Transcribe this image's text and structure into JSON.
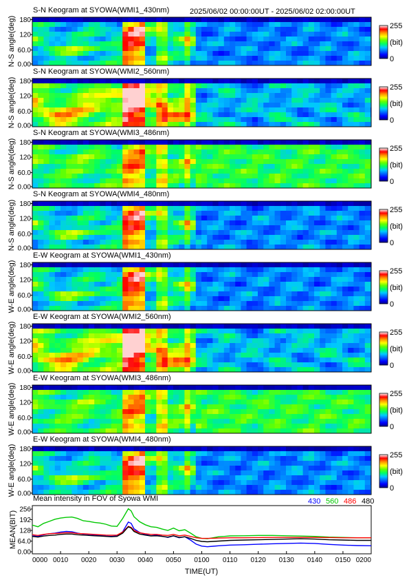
{
  "header": {
    "period": "2025/06/02 00:00:00UT - 2025/06/02 02:00:00UT"
  },
  "colorbar": {
    "max_label": "255",
    "unit_label": "(bit)",
    "min_label": "0",
    "colors": [
      "#00008c",
      "#0000ff",
      "#0064ff",
      "#00c8ff",
      "#00ff64",
      "#64ff00",
      "#ffff00",
      "#ff9600",
      "#ff0000",
      "#ffffff"
    ]
  },
  "keograms": [
    {
      "title": "S-N Keogram at SYOWA(WMI1_430nm)",
      "ylabel": "N-S angle(deg)",
      "yticks": [
        "180",
        "120",
        "60.0",
        "0.00"
      ],
      "level": "low"
    },
    {
      "title": "S-N Keogram at SYOWA(WMI2_560nm)",
      "ylabel": "N-S angle(deg)",
      "yticks": [
        "180",
        "120",
        "60.0",
        "0.00"
      ],
      "level": "high"
    },
    {
      "title": "S-N Keogram at SYOWA(WMI3_486nm)",
      "ylabel": "N-S angle(deg)",
      "yticks": [
        "180",
        "120",
        "60.0",
        "0.00"
      ],
      "level": "mid"
    },
    {
      "title": "S-N Keogram at SYOWA(WMI4_480nm)",
      "ylabel": "N-S angle(deg)",
      "yticks": [
        "180",
        "120",
        "60.0",
        "0.00"
      ],
      "level": "low"
    },
    {
      "title": "E-W Keogram at SYOWA(WMI1_430nm)",
      "ylabel": "W-E angle(deg)",
      "yticks": [
        "180",
        "120",
        "60.0",
        "0.00"
      ],
      "level": "low"
    },
    {
      "title": "E-W Keogram at SYOWA(WMI2_560nm)",
      "ylabel": "W-E angle(deg)",
      "yticks": [
        "180",
        "120",
        "60.0",
        "0.00"
      ],
      "level": "high"
    },
    {
      "title": "E-W Keogram at SYOWA(WMI3_486nm)",
      "ylabel": "W-E angle(deg)",
      "yticks": [
        "180",
        "120",
        "60.0",
        "0.00"
      ],
      "level": "mid"
    },
    {
      "title": "E-W Keogram at SYOWA(WMI4_480nm)",
      "ylabel": "W-E angle(deg)",
      "yticks": [
        "180",
        "120",
        "60.0",
        "0.00"
      ],
      "level": "low"
    }
  ],
  "mean_panel": {
    "title": "Mean intensity in FOV of Syowa WMI",
    "ylabel": "MEAN(BIT)",
    "yticks": [
      "256",
      "192",
      "128",
      "64.0",
      "0.00"
    ],
    "xlabel": "TIME(UT)",
    "xticks": [
      "0000",
      "0010",
      "0020",
      "0030",
      "0040",
      "0050",
      "0100",
      "0110",
      "0120",
      "0130",
      "0140",
      "0150",
      "0200"
    ]
  },
  "chart_data": {
    "type": "line",
    "title": "Mean intensity in FOV of Syowa WMI",
    "xlabel": "TIME(UT)",
    "ylabel": "MEAN(BIT)",
    "xlim": [
      0,
      120
    ],
    "ylim": [
      0,
      256
    ],
    "x": [
      0,
      2,
      4,
      6,
      8,
      10,
      12,
      14,
      16,
      18,
      20,
      22,
      24,
      26,
      28,
      30,
      32,
      34,
      35,
      36,
      38,
      40,
      42,
      44,
      46,
      48,
      50,
      52,
      54,
      56,
      58,
      60,
      62,
      64,
      66,
      68,
      70,
      75,
      80,
      85,
      90,
      95,
      100,
      105,
      110,
      115,
      120
    ],
    "series": [
      {
        "name": "430",
        "color": "#0000ff",
        "values": [
          95,
          92,
          102,
          108,
          112,
          118,
          122,
          120,
          112,
          106,
          104,
          101,
          98,
          94,
          92,
          95,
          120,
          178,
          170,
          138,
          115,
          104,
          96,
          100,
          93,
          86,
          95,
          84,
          90,
          70,
          46,
          34,
          30,
          33,
          36,
          38,
          40,
          42,
          45,
          48,
          50,
          52,
          50,
          44,
          40,
          37,
          36
        ]
      },
      {
        "name": "560",
        "color": "#00c800",
        "values": [
          160,
          150,
          170,
          182,
          195,
          202,
          206,
          208,
          200,
          186,
          182,
          176,
          172,
          165,
          154,
          152,
          200,
          258,
          245,
          210,
          180,
          162,
          150,
          146,
          136,
          128,
          142,
          126,
          132,
          112,
          90,
          80,
          78,
          84,
          90,
          92,
          95,
          96,
          98,
          98,
          96,
          94,
          92,
          88,
          86,
          84,
          84
        ]
      },
      {
        "name": "486",
        "color": "#ff0000",
        "values": [
          102,
          98,
          104,
          108,
          110,
          112,
          114,
          114,
          110,
          108,
          106,
          104,
          102,
          100,
          99,
          100,
          118,
          152,
          146,
          128,
          114,
          108,
          104,
          104,
          100,
          98,
          104,
          96,
          100,
          92,
          84,
          80,
          80,
          81,
          82,
          83,
          84,
          84,
          85,
          86,
          86,
          86,
          86,
          85,
          84,
          84,
          84
        ]
      },
      {
        "name": "480",
        "color": "#000000",
        "values": [
          92,
          88,
          94,
          98,
          100,
          104,
          106,
          106,
          102,
          100,
          98,
          96,
          94,
          92,
          90,
          92,
          112,
          150,
          142,
          122,
          106,
          100,
          95,
          96,
          92,
          88,
          96,
          86,
          90,
          80,
          68,
          62,
          60,
          62,
          64,
          66,
          68,
          70,
          72,
          74,
          76,
          78,
          76,
          72,
          70,
          68,
          68
        ]
      }
    ]
  }
}
